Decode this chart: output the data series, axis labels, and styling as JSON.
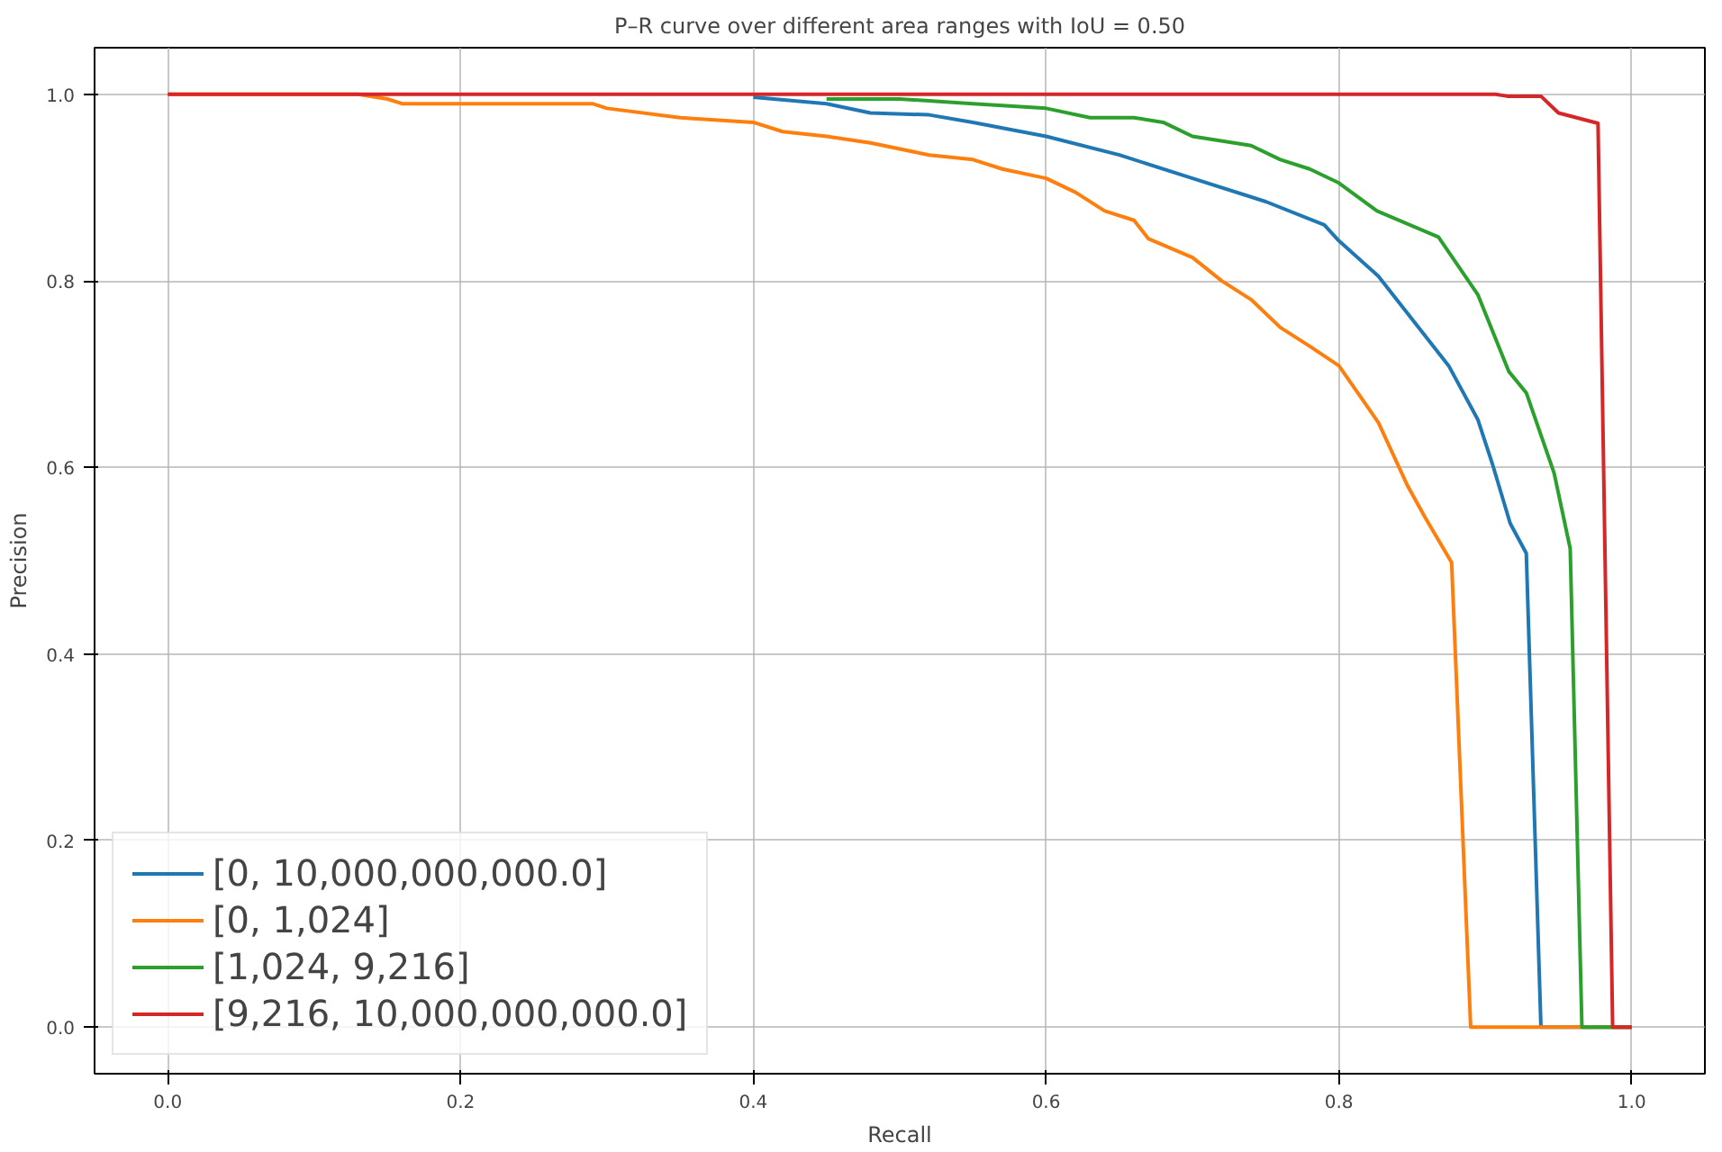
{
  "chart_data": {
    "type": "line",
    "title": "P–R curve over different area ranges with IoU = 0.50",
    "xlabel": "Recall",
    "ylabel": "Precision",
    "xlim": [
      -0.05,
      1.05
    ],
    "ylim": [
      -0.05,
      1.05
    ],
    "xticks": [
      {
        "value": 0,
        "label": "0.0"
      },
      0.2,
      0.4,
      0.6,
      0.8,
      {
        "value": 1,
        "label": "1.0"
      }
    ],
    "yticks": [
      {
        "value": 0,
        "label": "0.0"
      },
      0.2,
      0.4,
      0.6,
      0.8,
      {
        "value": 1,
        "label": "1.0"
      }
    ],
    "grid": true,
    "legend": "bottom left",
    "marker": "none",
    "line_style": "solid",
    "series": [
      {
        "name": "[0, 10,000,000,000.0]",
        "color": "#1f77b4",
        "x": [
          0.4,
          0.45,
          0.48,
          0.52,
          0.55,
          0.6,
          0.65,
          0.7,
          0.75,
          0.79,
          0.8,
          0.827,
          0.875,
          0.895,
          0.905,
          0.917,
          0.928,
          0.938,
          1.0
        ],
        "values": [
          0.997,
          0.99,
          0.98,
          0.978,
          0.97,
          0.955,
          0.935,
          0.91,
          0.885,
          0.86,
          0.843,
          0.805,
          0.709,
          0.651,
          0.603,
          0.54,
          0.508,
          0,
          0
        ]
      },
      {
        "name": "[0, 1,024]",
        "color": "#ff7f0e",
        "x": [
          0,
          0.13,
          0.15,
          0.16,
          0.29,
          0.3,
          0.35,
          0.4,
          0.42,
          0.45,
          0.48,
          0.52,
          0.55,
          0.57,
          0.6,
          0.62,
          0.64,
          0.66,
          0.67,
          0.7,
          0.72,
          0.74,
          0.76,
          0.78,
          0.8,
          0.827,
          0.847,
          0.859,
          0.877,
          0.89,
          1.0
        ],
        "values": [
          1,
          1,
          0.995,
          0.99,
          0.99,
          0.985,
          0.975,
          0.97,
          0.96,
          0.955,
          0.948,
          0.935,
          0.93,
          0.92,
          0.91,
          0.895,
          0.875,
          0.865,
          0.845,
          0.825,
          0.8,
          0.78,
          0.75,
          0.73,
          0.709,
          0.648,
          0.58,
          0.546,
          0.498,
          0,
          0
        ]
      },
      {
        "name": "[1,024, 9,216]",
        "color": "#2ca02c",
        "x": [
          0.45,
          0.5,
          0.55,
          0.6,
          0.63,
          0.66,
          0.68,
          0.7,
          0.74,
          0.76,
          0.78,
          0.8,
          0.826,
          0.868,
          0.895,
          0.916,
          0.928,
          0.947,
          0.958,
          0.966,
          1.0
        ],
        "values": [
          0.995,
          0.995,
          0.99,
          0.985,
          0.975,
          0.975,
          0.97,
          0.955,
          0.945,
          0.93,
          0.92,
          0.905,
          0.875,
          0.847,
          0.785,
          0.703,
          0.68,
          0.594,
          0.513,
          0,
          0
        ]
      },
      {
        "name": "[9,216, 10,000,000,000.0]",
        "color": "#d62728",
        "x": [
          0,
          0.907,
          0.915,
          0.938,
          0.95,
          0.977,
          0.987,
          1.0
        ],
        "values": [
          1,
          1,
          0.998,
          0.998,
          0.98,
          0.969,
          0,
          0
        ]
      }
    ]
  }
}
